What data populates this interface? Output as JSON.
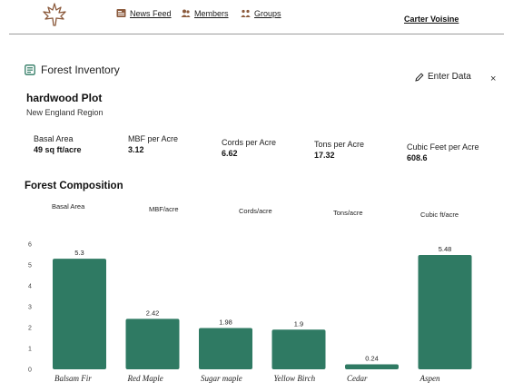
{
  "nav": {
    "logo_icon": "maple-leaf-icon",
    "links": [
      {
        "label": "News Feed",
        "icon": "news-icon"
      },
      {
        "label": "Members",
        "icon": "members-icon"
      },
      {
        "label": "Groups",
        "icon": "groups-icon"
      }
    ],
    "user_name": "Carter Voisine",
    "accent_color": "#8b5a3c"
  },
  "header": {
    "title": "Forest Inventory",
    "title_icon": "inventory-icon",
    "enter_data_label": "Enter Data",
    "enter_data_icon": "pencil-icon",
    "close_label": "×"
  },
  "plot": {
    "title": "hardwood Plot",
    "region": "New England Region"
  },
  "stats": [
    {
      "label": "Basal Area",
      "value": "49 sq ft/acre"
    },
    {
      "label": "MBF per Acre",
      "value": "3.12"
    },
    {
      "label": "Cords per Acre",
      "value": "6.62"
    },
    {
      "label": "Tons per Acre",
      "value": "17.32"
    },
    {
      "label": "Cubic Feet per Acre",
      "value": "608.6"
    }
  ],
  "composition": {
    "title": "Forest Composition",
    "tabs": [
      "Basal Area",
      "MBF/acre",
      "Cords/acre",
      "Tons/acre",
      "Cubic ft/acre"
    ],
    "selected_tab": "Basal Area"
  },
  "chart_data": {
    "type": "bar",
    "categories": [
      "Balsam Fir",
      "Red Maple",
      "Sugar maple",
      "Yellow Birch",
      "Cedar",
      "Aspen"
    ],
    "values": [
      5.3,
      2.42,
      1.98,
      1.9,
      0.24,
      5.48
    ],
    "value_labels": [
      "5.3",
      "2.42",
      "1.98",
      "1.9",
      "0.24",
      "5.48"
    ],
    "y_ticks": [
      "0",
      "1",
      "2",
      "3",
      "4",
      "5",
      "6"
    ],
    "ylim": [
      0,
      6
    ],
    "bar_color": "#2f7a63",
    "grid": false
  }
}
